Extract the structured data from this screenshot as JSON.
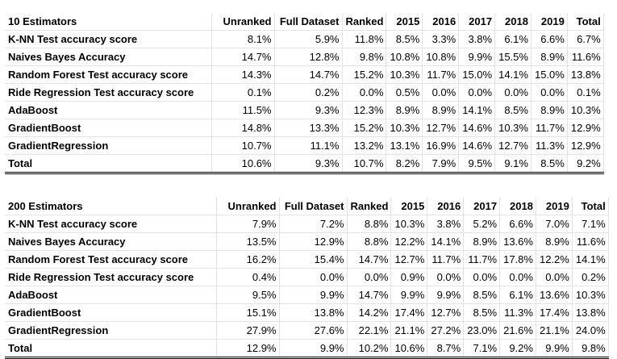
{
  "tables": [
    {
      "title": "10 Estimators",
      "headers": [
        "Unranked",
        "Full Dataset",
        "Ranked",
        "2015",
        "2016",
        "2017",
        "2018",
        "2019",
        "Total"
      ],
      "rows": [
        {
          "label": "K-NN Test accuracy score",
          "values": [
            "8.1%",
            "5.9%",
            "11.8%",
            "8.5%",
            "3.3%",
            "3.8%",
            "6.1%",
            "6.6%",
            "6.7%"
          ]
        },
        {
          "label": "Naives Bayes Accuracy",
          "values": [
            "14.7%",
            "12.8%",
            "9.8%",
            "10.8%",
            "10.8%",
            "9.9%",
            "15.5%",
            "8.9%",
            "11.6%"
          ]
        },
        {
          "label": "Random Forest Test accuracy score",
          "values": [
            "14.3%",
            "14.7%",
            "15.2%",
            "10.3%",
            "11.7%",
            "15.0%",
            "14.1%",
            "15.0%",
            "13.8%"
          ]
        },
        {
          "label": "Ride Regression Test accuracy score",
          "values": [
            "0.1%",
            "0.2%",
            "0.0%",
            "0.5%",
            "0.0%",
            "0.0%",
            "0.0%",
            "0.0%",
            "0.1%"
          ]
        },
        {
          "label": "AdaBoost",
          "values": [
            "11.5%",
            "9.3%",
            "12.3%",
            "8.9%",
            "8.9%",
            "14.1%",
            "8.5%",
            "8.9%",
            "10.3%"
          ]
        },
        {
          "label": "GradientBoost",
          "values": [
            "14.8%",
            "13.3%",
            "15.2%",
            "10.3%",
            "12.7%",
            "14.6%",
            "10.3%",
            "11.7%",
            "12.9%"
          ]
        },
        {
          "label": "GradientRegression",
          "values": [
            "10.7%",
            "11.1%",
            "13.2%",
            "13.1%",
            "16.9%",
            "14.6%",
            "12.7%",
            "11.3%",
            "12.9%"
          ]
        }
      ],
      "total": {
        "label": "Total",
        "values": [
          "10.6%",
          "9.3%",
          "10.7%",
          "8.2%",
          "7.9%",
          "9.5%",
          "9.1%",
          "8.5%",
          "9.2%"
        ]
      }
    },
    {
      "title": "200 Estimators",
      "headers": [
        "Unranked",
        "Full Dataset",
        "Ranked",
        "2015",
        "2016",
        "2017",
        "2018",
        "2019",
        "Total"
      ],
      "rows": [
        {
          "label": "K-NN Test accuracy score",
          "values": [
            "7.9%",
            "7.2%",
            "8.8%",
            "10.3%",
            "3.8%",
            "5.2%",
            "6.6%",
            "7.0%",
            "7.1%"
          ]
        },
        {
          "label": "Naives Bayes Accuracy",
          "values": [
            "13.5%",
            "12.9%",
            "8.8%",
            "12.2%",
            "14.1%",
            "8.9%",
            "13.6%",
            "8.9%",
            "11.6%"
          ]
        },
        {
          "label": "Random Forest Test accuracy score",
          "values": [
            "16.2%",
            "15.4%",
            "14.7%",
            "12.7%",
            "11.7%",
            "11.7%",
            "17.8%",
            "12.2%",
            "14.1%"
          ]
        },
        {
          "label": "Ride Regression Test accuracy score",
          "values": [
            "0.4%",
            "0.0%",
            "0.0%",
            "0.9%",
            "0.0%",
            "0.0%",
            "0.0%",
            "0.0%",
            "0.2%"
          ]
        },
        {
          "label": "AdaBoost",
          "values": [
            "9.5%",
            "9.9%",
            "14.7%",
            "9.9%",
            "9.9%",
            "8.5%",
            "6.1%",
            "13.6%",
            "10.3%"
          ]
        },
        {
          "label": "GradientBoost",
          "values": [
            "15.1%",
            "13.8%",
            "14.2%",
            "17.4%",
            "12.7%",
            "8.5%",
            "11.3%",
            "17.4%",
            "13.8%"
          ]
        },
        {
          "label": "GradientRegression",
          "values": [
            "27.9%",
            "27.6%",
            "22.1%",
            "21.1%",
            "27.2%",
            "23.0%",
            "21.6%",
            "21.1%",
            "24.0%"
          ]
        }
      ],
      "total": {
        "label": "Total",
        "values": [
          "12.9%",
          "9.9%",
          "10.2%",
          "10.6%",
          "8.7%",
          "7.1%",
          "9.2%",
          "9.9%",
          "9.8%"
        ]
      }
    }
  ]
}
